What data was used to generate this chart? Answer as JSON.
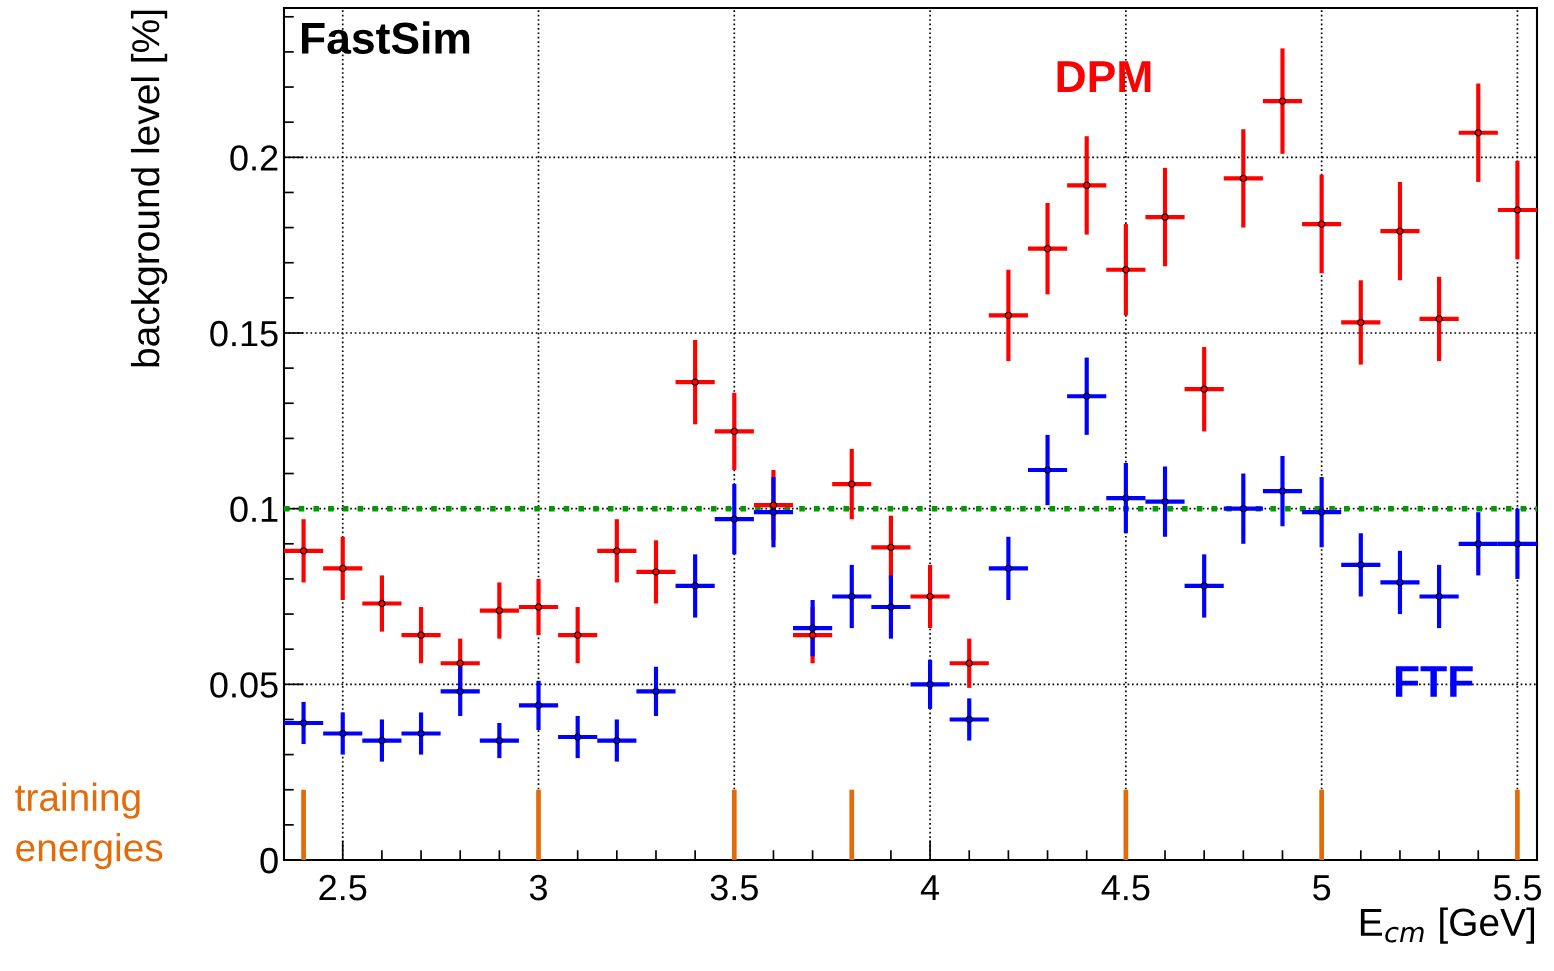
{
  "chart_data": {
    "type": "scatter",
    "xlabel": "E$_{cm}$ [GeV]",
    "ylabel": "background level [%]",
    "annotations": [
      "FastSim"
    ],
    "xlim": [
      2.35,
      5.55
    ],
    "xticks": [
      {
        "value": 2.5,
        "label": "2.5"
      },
      {
        "value": 3,
        "label": "3"
      },
      {
        "value": 3.5,
        "label": "3.5"
      },
      {
        "value": 4,
        "label": "4"
      },
      {
        "value": 4.5,
        "label": "4.5"
      },
      {
        "value": 5,
        "label": "5"
      },
      {
        "value": 5.5,
        "label": "5.5"
      }
    ],
    "ylim": [
      0,
      0.2425
    ],
    "yticks": [
      0,
      0.05,
      0.1,
      0.15,
      0.2
    ],
    "grid": true,
    "marker": "circle",
    "ref_lines": [
      {
        "axis": "y",
        "value": 0.1,
        "color": "#009900",
        "line_style": "dotted"
      }
    ],
    "series": [
      {
        "name": "DPM",
        "color": "#ff0000",
        "x": [
          2.4,
          2.5,
          2.6,
          2.7,
          2.8,
          2.9,
          3.0,
          3.1,
          3.2,
          3.3,
          3.4,
          3.5,
          3.6,
          3.7,
          3.8,
          3.9,
          4.0,
          4.1,
          4.2,
          4.3,
          4.4,
          4.5,
          4.6,
          4.7,
          4.8,
          4.9,
          5.0,
          5.1,
          5.2,
          5.3,
          5.4,
          5.5
        ],
        "values": [
          0.088,
          0.083,
          0.073,
          0.064,
          0.056,
          0.071,
          0.072,
          0.064,
          0.088,
          0.082,
          0.136,
          0.122,
          0.101,
          0.064,
          0.107,
          0.089,
          0.075,
          0.056,
          0.155,
          0.174,
          0.192,
          0.168,
          0.183,
          0.134,
          0.194,
          0.216,
          0.181,
          0.153,
          0.179,
          0.154,
          0.207,
          0.185
        ],
        "errors": [
          0.009,
          0.009,
          0.008,
          0.008,
          0.007,
          0.008,
          0.008,
          0.008,
          0.009,
          0.009,
          0.012,
          0.011,
          0.01,
          0.008,
          0.01,
          0.009,
          0.009,
          0.007,
          0.013,
          0.013,
          0.014,
          0.013,
          0.014,
          0.012,
          0.014,
          0.015,
          0.014,
          0.012,
          0.014,
          0.012,
          0.014,
          0.014
        ],
        "xerrors": [
          0.05,
          0.05,
          0.05,
          0.05,
          0.05,
          0.05,
          0.05,
          0.05,
          0.05,
          0.05,
          0.05,
          0.05,
          0.05,
          0.05,
          0.05,
          0.05,
          0.05,
          0.05,
          0.05,
          0.05,
          0.05,
          0.05,
          0.05,
          0.05,
          0.05,
          0.05,
          0.05,
          0.05,
          0.05,
          0.05,
          0.05,
          0.05
        ]
      },
      {
        "name": "FTF",
        "color": "#0000ff",
        "x": [
          2.4,
          2.5,
          2.6,
          2.7,
          2.8,
          2.9,
          3.0,
          3.1,
          3.2,
          3.3,
          3.4,
          3.5,
          3.6,
          3.7,
          3.8,
          3.9,
          4.0,
          4.1,
          4.2,
          4.3,
          4.4,
          4.5,
          4.6,
          4.7,
          4.8,
          4.9,
          5.0,
          5.1,
          5.2,
          5.3,
          5.4,
          5.5
        ],
        "values": [
          0.039,
          0.036,
          0.034,
          0.036,
          0.048,
          0.034,
          0.044,
          0.035,
          0.034,
          0.048,
          0.078,
          0.097,
          0.099,
          0.066,
          0.075,
          0.072,
          0.05,
          0.04,
          0.083,
          0.111,
          0.132,
          0.103,
          0.102,
          0.078,
          0.1,
          0.105,
          0.099,
          0.084,
          0.079,
          0.075,
          0.09,
          0.09
        ],
        "errors": [
          0.006,
          0.006,
          0.006,
          0.006,
          0.007,
          0.005,
          0.007,
          0.006,
          0.006,
          0.007,
          0.009,
          0.01,
          0.01,
          0.008,
          0.009,
          0.009,
          0.007,
          0.006,
          0.009,
          0.01,
          0.011,
          0.01,
          0.01,
          0.009,
          0.01,
          0.01,
          0.01,
          0.009,
          0.009,
          0.009,
          0.009,
          0.01
        ],
        "xerrors": [
          0.05,
          0.05,
          0.05,
          0.05,
          0.05,
          0.05,
          0.05,
          0.05,
          0.05,
          0.05,
          0.05,
          0.05,
          0.05,
          0.05,
          0.05,
          0.05,
          0.05,
          0.05,
          0.05,
          0.05,
          0.05,
          0.05,
          0.05,
          0.05,
          0.05,
          0.05,
          0.05,
          0.05,
          0.05,
          0.05,
          0.05,
          0.05
        ]
      },
      {
        "name": "training\nenergies",
        "color": "#e36c0a",
        "type": "bar",
        "x": [
          2.4,
          3.0,
          3.5,
          3.8,
          4.5,
          5.0,
          5.5
        ],
        "values": [
          0.02,
          0.02,
          0.02,
          0.02,
          0.02,
          0.02,
          0.02
        ]
      }
    ]
  }
}
